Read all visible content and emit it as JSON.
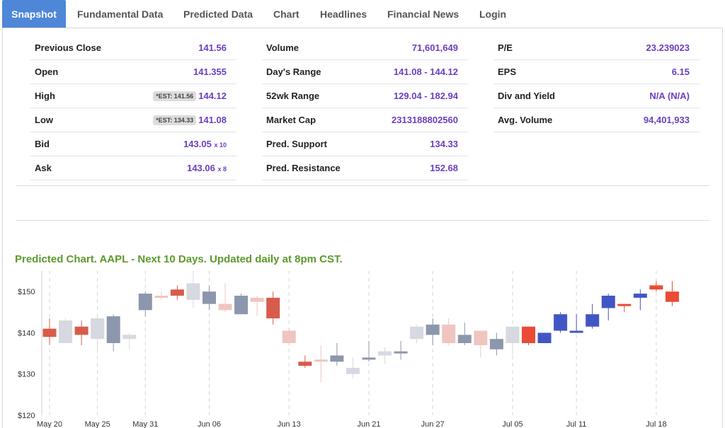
{
  "tabs": [
    {
      "label": "Snapshot",
      "active": true
    },
    {
      "label": "Fundamental Data"
    },
    {
      "label": "Predicted Data"
    },
    {
      "label": "Chart"
    },
    {
      "label": "Headlines"
    },
    {
      "label": "Financial News"
    },
    {
      "label": "Login"
    }
  ],
  "stats": {
    "col1": [
      {
        "label": "Previous Close",
        "value": "141.56"
      },
      {
        "label": "Open",
        "value": "141.355"
      },
      {
        "label": "High",
        "est": "*EST: 141.56",
        "value": "144.12"
      },
      {
        "label": "Low",
        "est": "*EST: 134.33",
        "value": "141.08"
      },
      {
        "label": "Bid",
        "value": "143.05",
        "suffix": "x 10"
      },
      {
        "label": "Ask",
        "value": "143.06",
        "suffix": "x 8"
      }
    ],
    "col2": [
      {
        "label": "Volume",
        "value": "71,601,649"
      },
      {
        "label": "Day's Range",
        "value": "141.08 - 144.12"
      },
      {
        "label": "52wk Range",
        "value": "129.04 - 182.94"
      },
      {
        "label": "Market Cap",
        "value": "2313188802560"
      },
      {
        "label": "Pred. Support",
        "value": "134.33"
      },
      {
        "label": "Pred. Resistance",
        "value": "152.68"
      }
    ],
    "col3": [
      {
        "label": "P/E",
        "value": "23.239023"
      },
      {
        "label": "EPS",
        "value": "6.15"
      },
      {
        "label": "Div and Yield",
        "value": "N/A (N/A)"
      },
      {
        "label": "Avg. Volume",
        "value": "94,401,933"
      }
    ]
  },
  "chart_title": "Predicted Chart. AAPL - Next 10 Days. Updated daily at 8pm CST.",
  "colors": {
    "tab_active_bg": "#4f87d8",
    "value_text": "#6a3fc0",
    "chart_title": "#5c9a2c",
    "hist_up": "#8c97ad",
    "hist_down": "#d95b4b",
    "hist_up_faded": "#d6d9e0",
    "hist_down_faded": "#efc5c0",
    "pred_up": "#4156c5",
    "pred_down": "#ec4a36"
  },
  "chart_data": {
    "type": "candlestick",
    "ylim": [
      120,
      155
    ],
    "yticks": [
      120,
      130,
      140,
      150
    ],
    "ytick_labels": [
      "$120",
      "$130",
      "$140",
      "$150"
    ],
    "xtick_labels": [
      {
        "label": "May 20",
        "index": 0
      },
      {
        "label": "May 25",
        "index": 3
      },
      {
        "label": "May 31",
        "index": 6
      },
      {
        "label": "Jun 06",
        "index": 10
      },
      {
        "label": "Jun 13",
        "index": 15
      },
      {
        "label": "Jun 21",
        "index": 20
      },
      {
        "label": "Jun 27",
        "index": 24
      },
      {
        "label": "Jul 05",
        "index": 29
      },
      {
        "label": "Jul 11",
        "index": 33
      },
      {
        "label": "Jul 18",
        "index": 38
      }
    ],
    "candles": [
      {
        "o": 141.0,
        "h": 143.5,
        "l": 137.0,
        "c": 139.0,
        "style": "down"
      },
      {
        "o": 137.5,
        "h": 143.5,
        "l": 137.5,
        "c": 143.0,
        "style": "up"
      },
      {
        "o": 141.5,
        "h": 143.0,
        "l": 137.0,
        "c": 139.5,
        "style": "down"
      },
      {
        "o": 138.5,
        "h": 144.0,
        "l": 135.0,
        "c": 143.5,
        "style": "up"
      },
      {
        "o": 137.5,
        "h": 144.5,
        "l": 135.5,
        "c": 144.0,
        "style": "up"
      },
      {
        "o": 138.5,
        "h": 140.0,
        "l": 136.0,
        "c": 139.5,
        "style": "up"
      },
      {
        "o": 145.5,
        "h": 150.0,
        "l": 144.0,
        "c": 149.5,
        "style": "up"
      },
      {
        "o": 149.0,
        "h": 150.0,
        "l": 148.0,
        "c": 149.0,
        "style": "down"
      },
      {
        "o": 149.0,
        "h": 151.5,
        "l": 148.0,
        "c": 150.5,
        "style": "down"
      },
      {
        "o": 148.0,
        "h": 155.0,
        "l": 146.0,
        "c": 152.0,
        "style": "up"
      },
      {
        "o": 150.0,
        "h": 151.5,
        "l": 145.5,
        "c": 147.0,
        "style": "up"
      },
      {
        "o": 147.0,
        "h": 152.0,
        "l": 145.0,
        "c": 145.5,
        "style": "down"
      },
      {
        "o": 144.5,
        "h": 149.5,
        "l": 144.5,
        "c": 149.0,
        "style": "up"
      },
      {
        "o": 148.5,
        "h": 149.0,
        "l": 144.0,
        "c": 147.5,
        "style": "down"
      },
      {
        "o": 148.5,
        "h": 150.0,
        "l": 142.0,
        "c": 143.5,
        "style": "down"
      },
      {
        "o": 140.5,
        "h": 141.0,
        "l": 137.0,
        "c": 137.5,
        "style": "down"
      },
      {
        "o": 133.0,
        "h": 134.5,
        "l": 131.5,
        "c": 132.0,
        "style": "down"
      },
      {
        "o": 133.0,
        "h": 137.0,
        "l": 128.0,
        "c": 133.5,
        "style": "down"
      },
      {
        "o": 133.0,
        "h": 137.5,
        "l": 132.0,
        "c": 134.5,
        "style": "up"
      },
      {
        "o": 130.0,
        "h": 134.0,
        "l": 129.0,
        "c": 131.5,
        "style": "up"
      },
      {
        "o": 133.5,
        "h": 138.0,
        "l": 133.0,
        "c": 134.0,
        "style": "up"
      },
      {
        "o": 134.5,
        "h": 136.5,
        "l": 132.5,
        "c": 135.5,
        "style": "up"
      },
      {
        "o": 135.5,
        "h": 138.0,
        "l": 133.5,
        "c": 135.0,
        "style": "up"
      },
      {
        "o": 138.5,
        "h": 142.0,
        "l": 137.5,
        "c": 141.5,
        "style": "up"
      },
      {
        "o": 139.5,
        "h": 143.5,
        "l": 137.0,
        "c": 142.0,
        "style": "up"
      },
      {
        "o": 142.0,
        "h": 143.5,
        "l": 137.0,
        "c": 137.5,
        "style": "down"
      },
      {
        "o": 137.5,
        "h": 142.5,
        "l": 137.0,
        "c": 139.5,
        "style": "up"
      },
      {
        "o": 140.5,
        "h": 140.5,
        "l": 134.0,
        "c": 137.0,
        "style": "down"
      },
      {
        "o": 136.0,
        "h": 140.0,
        "l": 134.5,
        "c": 138.5,
        "style": "up"
      },
      {
        "o": 137.5,
        "h": 141.5,
        "l": 134.5,
        "c": 141.5,
        "style": "up"
      },
      {
        "o": 141.5,
        "h": 141.5,
        "l": 137.0,
        "c": 137.5,
        "style": "pred_down"
      },
      {
        "o": 137.5,
        "h": 140.0,
        "l": 137.5,
        "c": 140.0,
        "style": "pred_up"
      },
      {
        "o": 140.5,
        "h": 145.0,
        "l": 140.0,
        "c": 144.5,
        "style": "pred_up"
      },
      {
        "o": 140.5,
        "h": 144.5,
        "l": 140.0,
        "c": 140.5,
        "style": "pred_up"
      },
      {
        "o": 141.5,
        "h": 147.0,
        "l": 141.0,
        "c": 144.5,
        "style": "pred_up"
      },
      {
        "o": 146.0,
        "h": 149.5,
        "l": 143.0,
        "c": 149.0,
        "style": "pred_up"
      },
      {
        "o": 147.0,
        "h": 147.0,
        "l": 145.0,
        "c": 147.0,
        "style": "pred_down"
      },
      {
        "o": 148.5,
        "h": 150.5,
        "l": 145.5,
        "c": 149.5,
        "style": "pred_up"
      },
      {
        "o": 151.5,
        "h": 152.5,
        "l": 150.0,
        "c": 150.5,
        "style": "pred_down"
      },
      {
        "o": 150.0,
        "h": 152.5,
        "l": 146.5,
        "c": 147.5,
        "style": "pred_down"
      }
    ]
  }
}
